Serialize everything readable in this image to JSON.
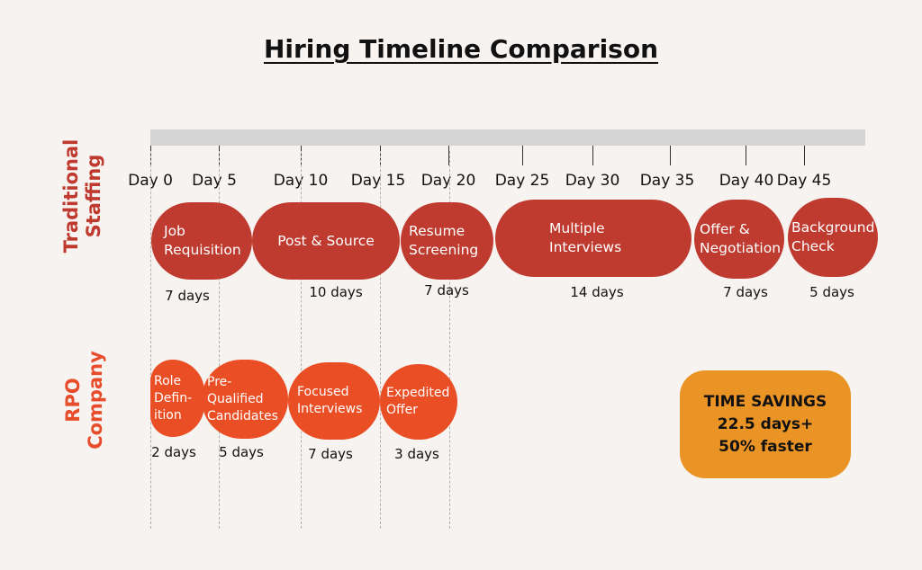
{
  "title": "Hiring Timeline Comparison",
  "rows": {
    "traditional": "Traditional\nStaffing",
    "rpo": "RPO\nCompany"
  },
  "days": [
    "Day 0",
    "Day 5",
    "Day 10",
    "Day 15",
    "Day 20",
    "Day 25",
    "Day 30",
    "Day 35",
    "Day 40",
    "Day 45"
  ],
  "traditional": [
    {
      "label": "Job\nRequisition",
      "duration": "7 days"
    },
    {
      "label": "Post & Source",
      "duration": "10 days"
    },
    {
      "label": "Resume\nScreening",
      "duration": "7 days"
    },
    {
      "label": "Multiple\nInterviews",
      "duration": "14 days"
    },
    {
      "label": "Offer &\nNegotiation",
      "duration": "7 days"
    },
    {
      "label": "Background\nCheck",
      "duration": "5 days"
    }
  ],
  "rpo": [
    {
      "label": "Role\nDefin-\nition",
      "duration": "2 days"
    },
    {
      "label": "Pre-\nQualified\nCandidates",
      "duration": "5 days"
    },
    {
      "label": "Focused\nInterviews",
      "duration": "7 days"
    },
    {
      "label": "Expedited\nOffer",
      "duration": "3 days"
    }
  ],
  "savings": {
    "heading": "TIME SAVINGS",
    "days": "22.5 days+",
    "percent": "50% faster"
  },
  "colors": {
    "traditional": "#bf3b30",
    "rpo": "#ea4e24",
    "savings": "#eb9426",
    "axis": "#d4d4d4"
  }
}
